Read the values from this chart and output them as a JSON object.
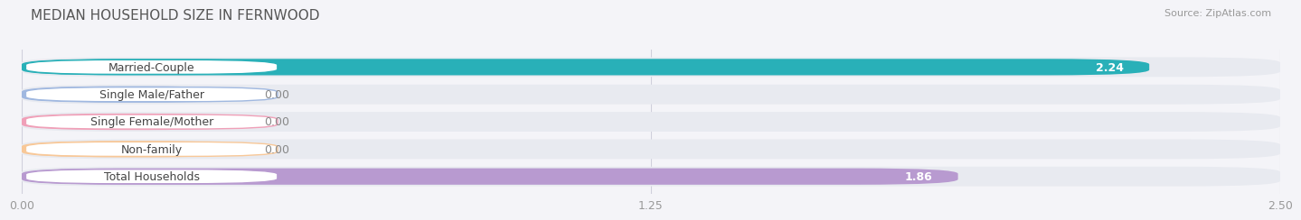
{
  "title": "MEDIAN HOUSEHOLD SIZE IN FERNWOOD",
  "source": "Source: ZipAtlas.com",
  "categories": [
    "Married-Couple",
    "Single Male/Father",
    "Single Female/Mother",
    "Non-family",
    "Total Households"
  ],
  "values": [
    2.24,
    0.0,
    0.0,
    0.0,
    1.86
  ],
  "bar_colors": [
    "#29b0b8",
    "#a0b8e0",
    "#f0a0b8",
    "#f8c898",
    "#b89ad0"
  ],
  "xlim": [
    0,
    2.5
  ],
  "xticks": [
    0.0,
    1.25,
    2.5
  ],
  "xtick_labels": [
    "0.00",
    "1.25",
    "2.50"
  ],
  "background_color": "#f4f4f8",
  "row_bg_color": "#e8eaf0",
  "title_fontsize": 11,
  "source_fontsize": 8,
  "bar_label_fontsize": 9,
  "value_fontsize": 9,
  "tick_fontsize": 9
}
